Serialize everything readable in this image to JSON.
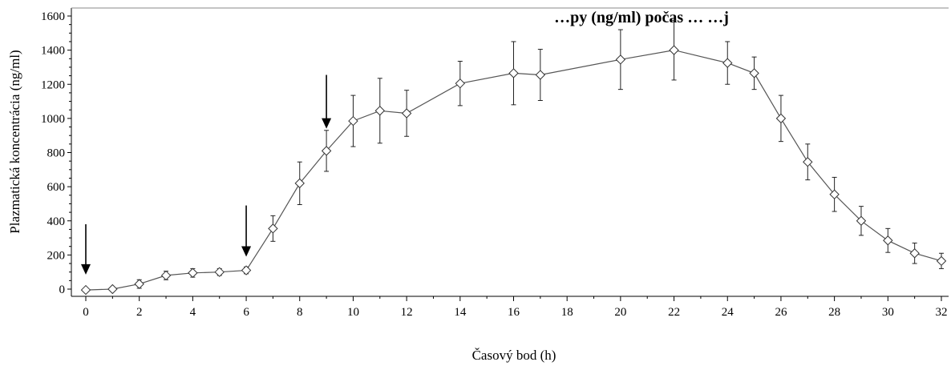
{
  "chart_data": {
    "type": "line",
    "title": "…py (ng/ml) počas … …j",
    "xlabel": "Časový bod (h)",
    "ylabel": "Plazmatická koncentrácia (ng/ml)",
    "xlim": [
      0,
      32
    ],
    "ylim": [
      0,
      1600
    ],
    "x_ticks": [
      0,
      2,
      4,
      6,
      8,
      10,
      12,
      14,
      16,
      18,
      20,
      22,
      24,
      26,
      28,
      30,
      32
    ],
    "y_ticks": [
      0,
      200,
      400,
      600,
      800,
      1000,
      1200,
      1400,
      1600
    ],
    "grid": false,
    "legend": "none",
    "marker": "diamond",
    "line_color": "#555555",
    "series": [
      {
        "x": [
          0,
          1,
          2,
          3,
          4,
          5,
          6,
          7,
          8,
          9,
          10,
          11,
          12,
          14,
          16,
          17,
          20,
          22,
          24,
          25,
          26,
          27,
          28,
          29,
          30,
          31,
          32
        ],
        "y": [
          -5,
          0,
          30,
          80,
          95,
          100,
          110,
          355,
          620,
          810,
          985,
          1045,
          1030,
          1205,
          1265,
          1255,
          1345,
          1400,
          1325,
          1265,
          1000,
          745,
          555,
          400,
          285,
          210,
          165
        ],
        "err": [
          5,
          8,
          25,
          25,
          25,
          20,
          20,
          75,
          125,
          120,
          150,
          190,
          135,
          130,
          185,
          150,
          175,
          175,
          125,
          95,
          135,
          105,
          100,
          85,
          70,
          60,
          45
        ]
      }
    ],
    "annotations": [
      {
        "type": "arrow",
        "x": 0,
        "y_from": 380,
        "y_to": 85
      },
      {
        "type": "arrow",
        "x": 6,
        "y_from": 490,
        "y_to": 190
      },
      {
        "type": "arrow",
        "x": 9,
        "y_from": 1255,
        "y_to": 940
      }
    ]
  }
}
